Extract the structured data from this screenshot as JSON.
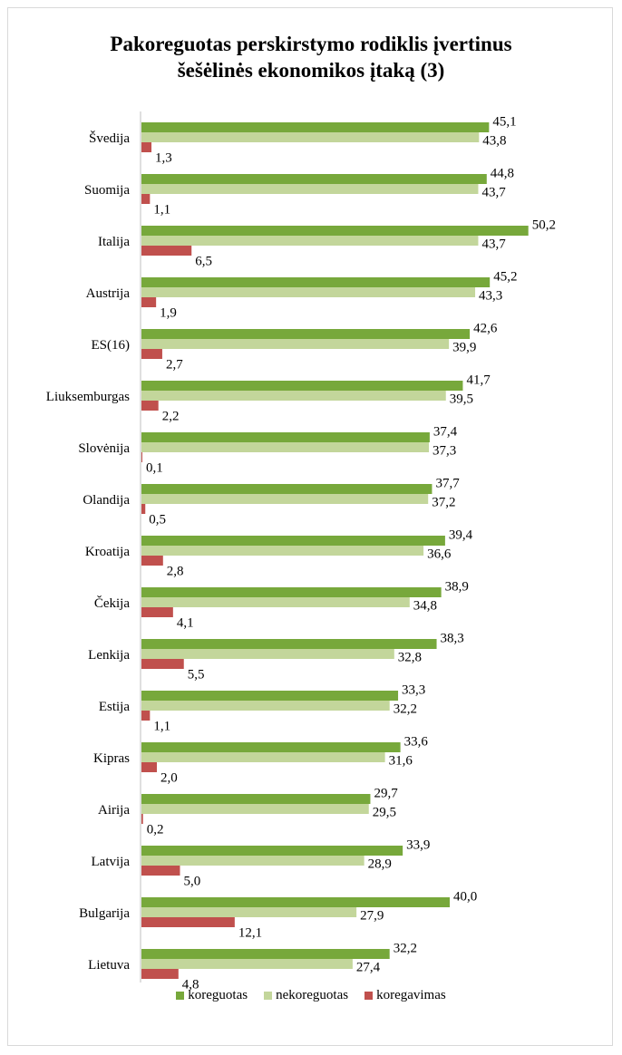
{
  "chart_data": {
    "type": "bar",
    "orientation": "horizontal",
    "title_line1": "Pakoreguotas perskirstymo rodiklis įvertinus",
    "title_line2": "šešėlinės ekonomikos įtaką (3)",
    "categories": [
      "Švedija",
      "Suomija",
      "Italija",
      "Austrija",
      "ES(16)",
      "Liuksemburgas",
      "Slovėnija",
      "Olandija",
      "Kroatija",
      "Čekija",
      "Lenkija",
      "Estija",
      "Kipras",
      "Airija",
      "Latvija",
      "Bulgarija",
      "Lietuva"
    ],
    "series": [
      {
        "name": "koreguotas",
        "color": "#77a83b",
        "values": [
          45.1,
          44.8,
          50.2,
          45.2,
          42.6,
          41.7,
          37.4,
          37.7,
          39.4,
          38.9,
          38.3,
          33.3,
          33.6,
          29.7,
          33.9,
          40.0,
          32.2
        ],
        "labels": [
          "45,1",
          "44,8",
          "50,2",
          "45,2",
          "42,6",
          "41,7",
          "37,4",
          "37,7",
          "39,4",
          "38,9",
          "38,3",
          "33,3",
          "33,6",
          "29,7",
          "33,9",
          "40,0",
          "32,2"
        ]
      },
      {
        "name": "nekoreguotas",
        "color": "#c3d69b",
        "values": [
          43.8,
          43.7,
          43.7,
          43.3,
          39.9,
          39.5,
          37.3,
          37.2,
          36.6,
          34.8,
          32.8,
          32.2,
          31.6,
          29.5,
          28.9,
          27.9,
          27.4
        ],
        "labels": [
          "43,8",
          "43,7",
          "43,7",
          "43,3",
          "39,9",
          "39,5",
          "37,3",
          "37,2",
          "36,6",
          "34,8",
          "32,8",
          "32,2",
          "31,6",
          "29,5",
          "28,9",
          "27,9",
          "27,4"
        ]
      },
      {
        "name": "koregavimas",
        "color": "#c0504d",
        "values": [
          1.3,
          1.1,
          6.5,
          1.9,
          2.7,
          2.2,
          0.1,
          0.5,
          2.8,
          4.1,
          5.5,
          1.1,
          2.0,
          0.2,
          5.0,
          12.1,
          4.8
        ],
        "labels": [
          "1,3",
          "1,1",
          "6,5",
          "1,9",
          "2,7",
          "2,2",
          "0,1",
          "0,5",
          "2,8",
          "4,1",
          "5,5",
          "1,1",
          "2,0",
          "0,2",
          "5,0",
          "12,1",
          "4,8"
        ]
      }
    ],
    "xlim": [
      0,
      55
    ],
    "grid": false,
    "legend_position": "bottom"
  }
}
